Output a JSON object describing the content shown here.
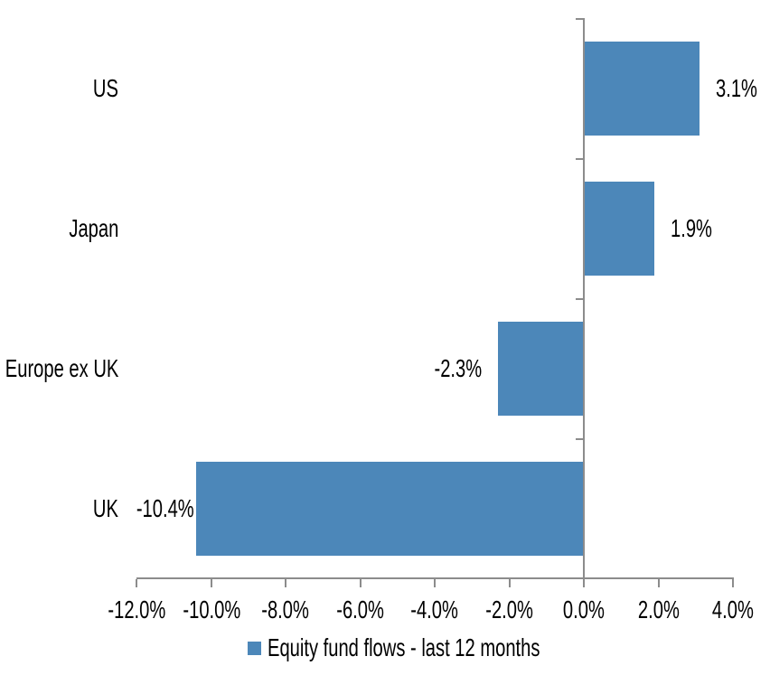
{
  "chart_data": {
    "type": "bar",
    "orientation": "horizontal",
    "title": "",
    "legend": "Equity fund flows - last 12 months",
    "legend_position": "bottom",
    "categories": [
      "US",
      "Japan",
      "Europe ex UK",
      "UK"
    ],
    "values": [
      3.1,
      1.9,
      -2.3,
      -10.4
    ],
    "value_labels": [
      "3.1%",
      "1.9%",
      "-2.3%",
      "-10.4%"
    ],
    "x_ticks": [
      -12,
      -10,
      -8,
      -6,
      -4,
      -2,
      0,
      2,
      4
    ],
    "x_tick_labels": [
      "-12.0%",
      "-10.0%",
      "-8.0%",
      "-6.0%",
      "-4.0%",
      "-2.0%",
      "0.0%",
      "2.0%",
      "4.0%"
    ],
    "xlim": [
      -12,
      4
    ],
    "grid": "off",
    "value_label_position": "outside-end",
    "bar_color": "#4C87B9",
    "axis_color": "#8C8C8C",
    "text_color": "#000000",
    "background": "#FFFFFF"
  }
}
